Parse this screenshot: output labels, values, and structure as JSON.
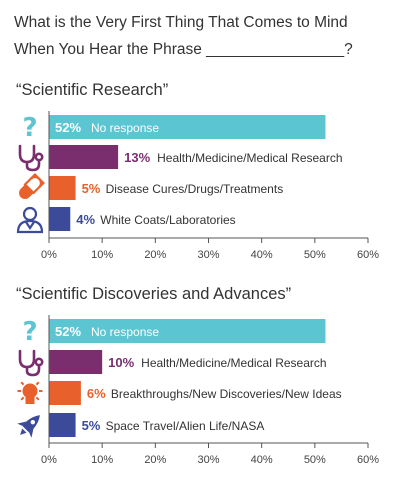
{
  "title_line1": "What is the Very First Thing That Comes to Mind",
  "title_line2": "When You Hear the Phrase ________________?",
  "colors": {
    "no_response": "#5BC5D1",
    "health": "#7B2E6E",
    "cures": "#E8612C",
    "coats": "#3C4B99",
    "axis": "#555555"
  },
  "chart_data": [
    {
      "type": "bar",
      "orientation": "horizontal",
      "title": "“Scientific Research”",
      "xlim": [
        0,
        60
      ],
      "xticks": [
        "0%",
        "10%",
        "20%",
        "30%",
        "40%",
        "50%",
        "60%"
      ],
      "tick_values": [
        0,
        10,
        20,
        30,
        40,
        50,
        60
      ],
      "grid": false,
      "categories": [
        {
          "label": "No response",
          "value": 52,
          "pct_label": "52%",
          "color": "#5BC5D1",
          "icon": "question-mark-icon",
          "label_inside": true
        },
        {
          "label": "Health/Medicine/Medical Research",
          "value": 13,
          "pct_label": "13%",
          "color": "#7B2E6E",
          "icon": "stethoscope-icon",
          "label_inside": false
        },
        {
          "label": "Disease Cures/Drugs/Treatments",
          "value": 5,
          "pct_label": "5%",
          "color": "#E8612C",
          "icon": "pill-icon",
          "label_inside": false
        },
        {
          "label": "White Coats/Laboratories",
          "value": 4,
          "pct_label": "4%",
          "color": "#3C4B99",
          "icon": "doctor-icon",
          "label_inside": false
        }
      ]
    },
    {
      "type": "bar",
      "orientation": "horizontal",
      "title": "“Scientific Discoveries and Advances”",
      "xlim": [
        0,
        60
      ],
      "xticks": [
        "0%",
        "10%",
        "20%",
        "30%",
        "40%",
        "50%",
        "60%"
      ],
      "tick_values": [
        0,
        10,
        20,
        30,
        40,
        50,
        60
      ],
      "grid": false,
      "categories": [
        {
          "label": "No response",
          "value": 52,
          "pct_label": "52%",
          "color": "#5BC5D1",
          "icon": "question-mark-icon",
          "label_inside": true
        },
        {
          "label": "Health/Medicine/Medical Research",
          "value": 10,
          "pct_label": "10%",
          "color": "#7B2E6E",
          "icon": "stethoscope-icon",
          "label_inside": false
        },
        {
          "label": "Breakthroughs/New Discoveries/New Ideas",
          "value": 6,
          "pct_label": "6%",
          "color": "#E8612C",
          "icon": "lightbulb-icon",
          "label_inside": false
        },
        {
          "label": "Space Travel/Alien Life/NASA",
          "value": 5,
          "pct_label": "5%",
          "color": "#3C4B99",
          "icon": "rocket-icon",
          "label_inside": false
        }
      ]
    }
  ]
}
